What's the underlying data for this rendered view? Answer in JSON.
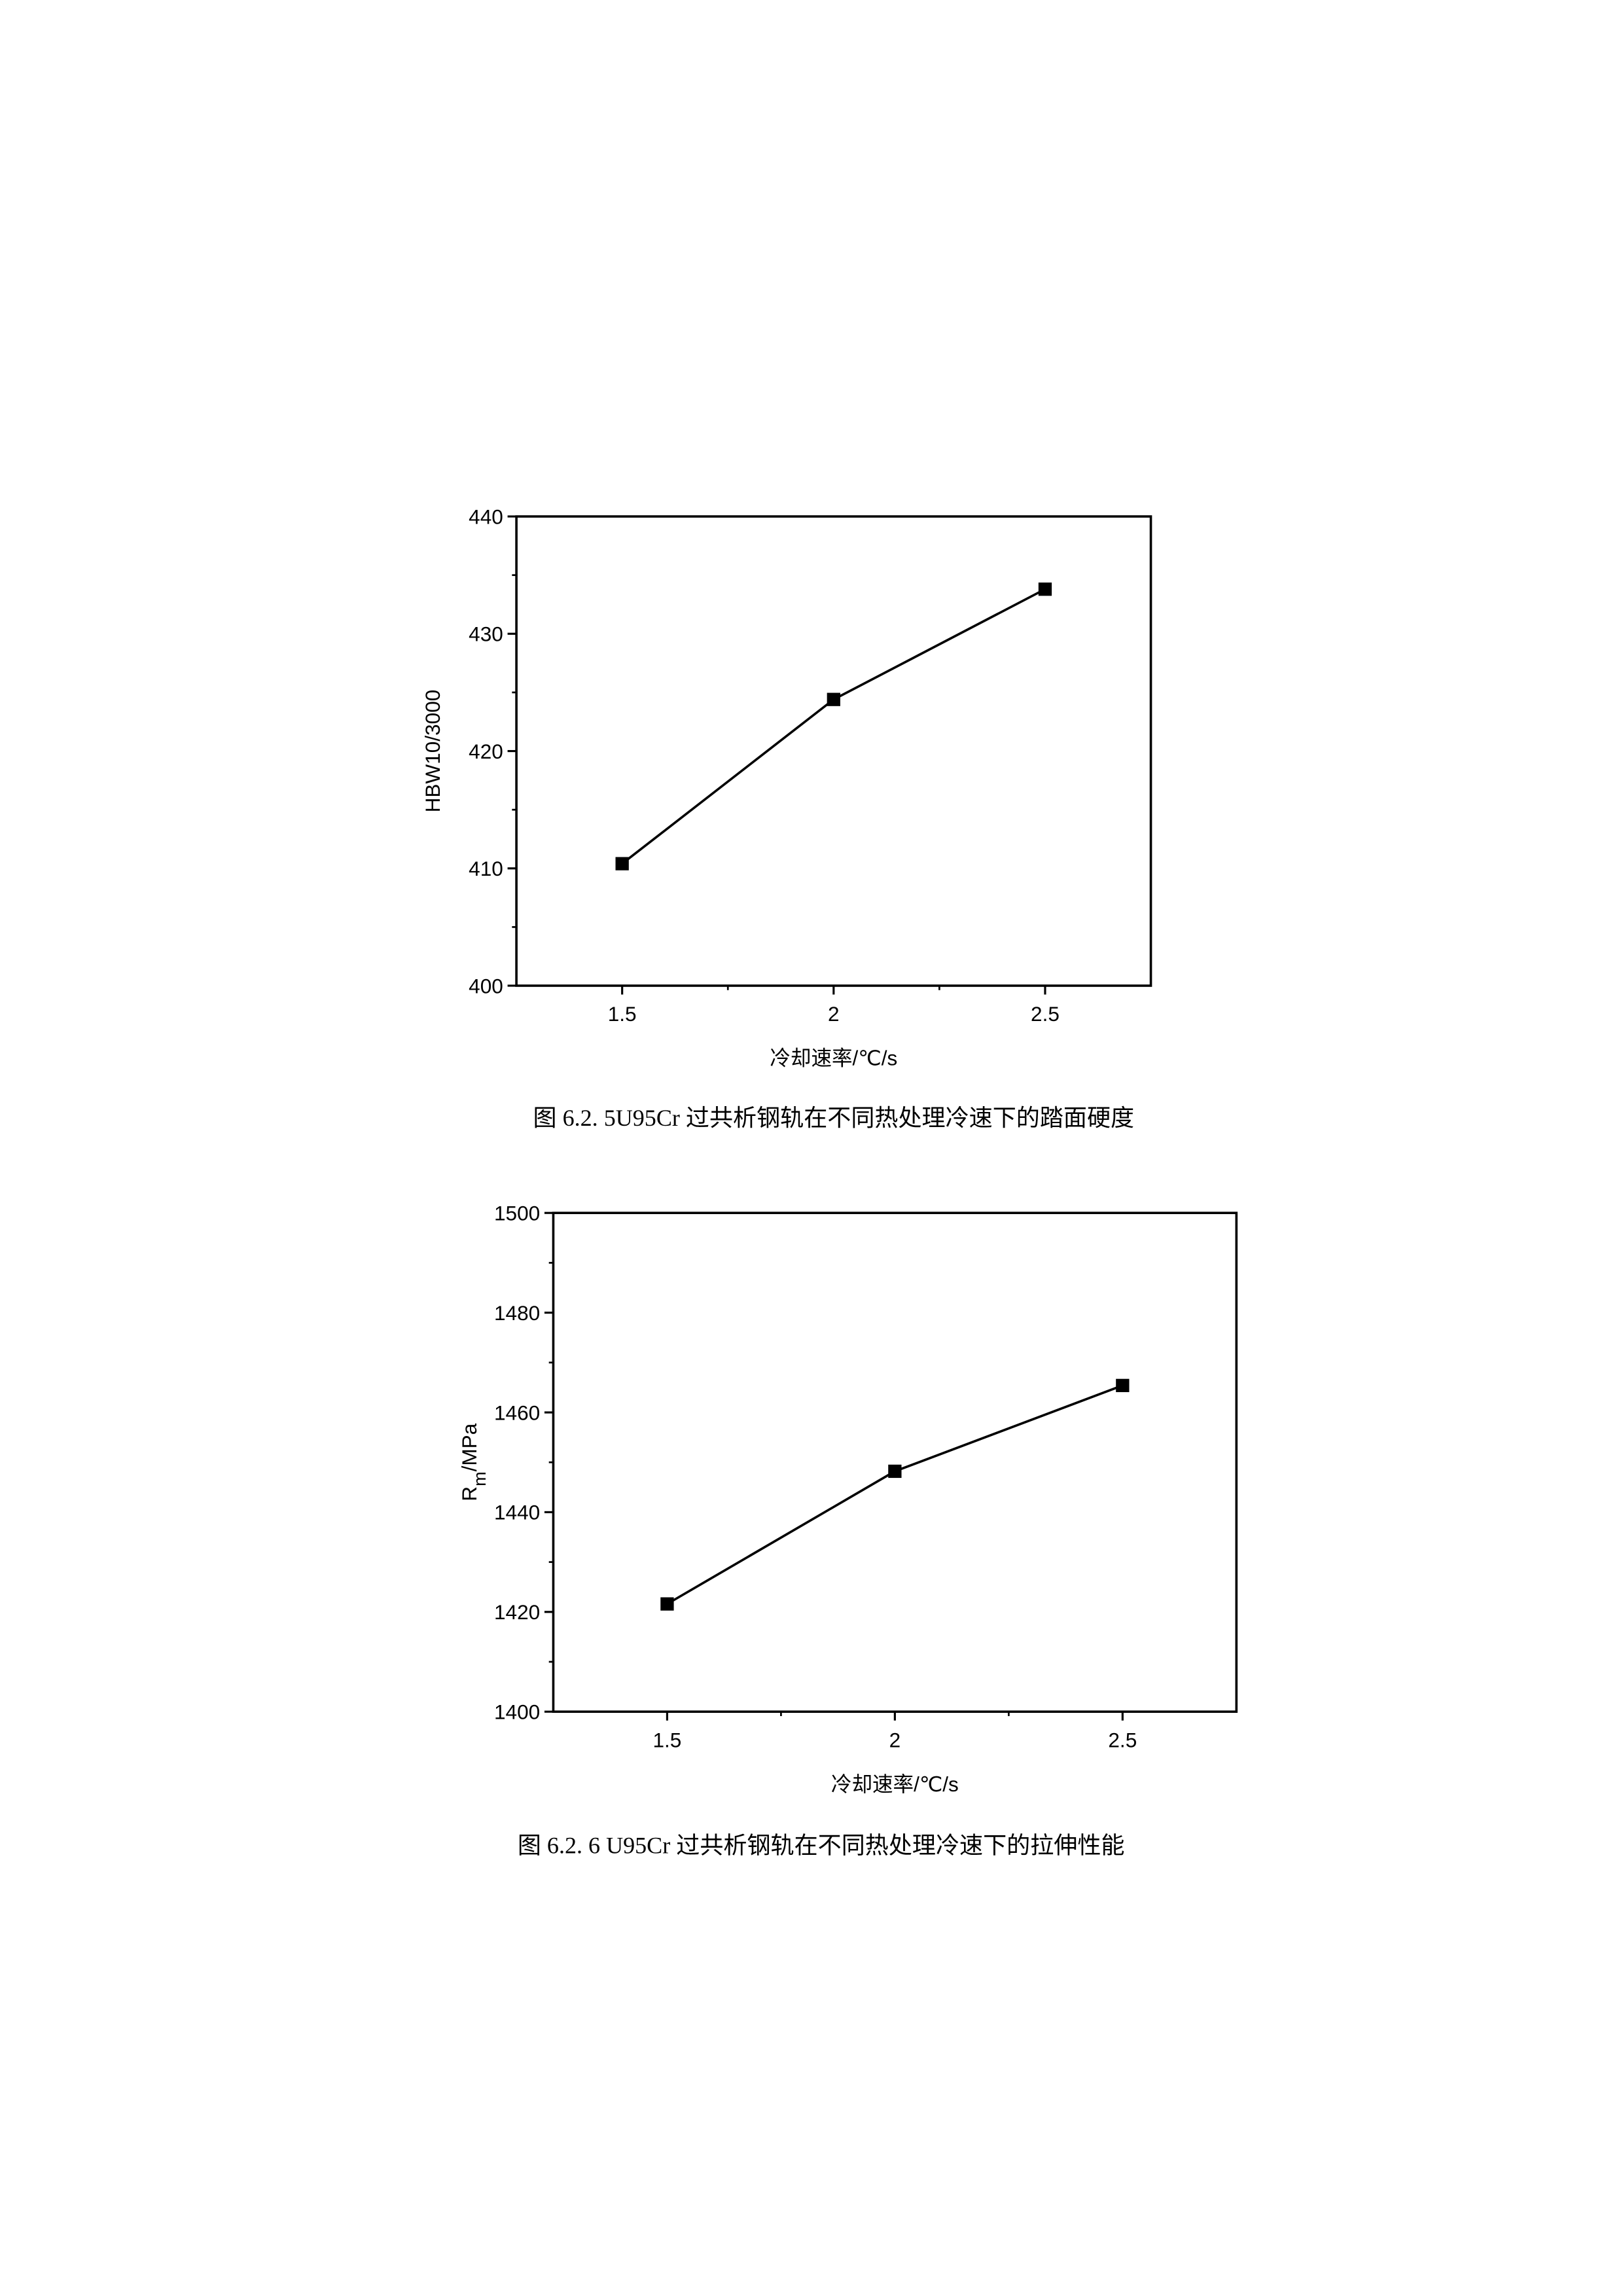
{
  "chart_data": [
    {
      "type": "line",
      "caption": "图 6.2. 5U95Cr 过共析钢轨在不同热处理冷速下的踏面硬度",
      "xlabel": "冷却速率/℃/s",
      "ylabel": [
        "HBW10/3000"
      ],
      "x": [
        1.5,
        2,
        2.5
      ],
      "series": [
        {
          "color": "#000000",
          "values": [
            410.4,
            424.4,
            433.8
          ]
        }
      ],
      "xlim": [
        1.25,
        2.75
      ],
      "xticks": [
        1.5,
        2,
        2.5
      ],
      "minor_xticks": [
        1.75,
        2.25
      ],
      "ylim": [
        400,
        440
      ],
      "yticks": [
        400,
        410,
        420,
        430,
        440
      ],
      "minor_yticks": [
        405,
        415,
        425,
        435
      ]
    },
    {
      "type": "line",
      "caption": "图 6.2. 6 U95Cr 过共析钢轨在不同热处理冷速下的拉伸性能",
      "xlabel": "冷却速率/℃/s",
      "ylabel": [
        "R",
        "m",
        "/MPa"
      ],
      "x": [
        1.5,
        2,
        2.5
      ],
      "series": [
        {
          "color": "#000000",
          "values": [
            1421.6,
            1448.2,
            1465.4
          ]
        }
      ],
      "xlim": [
        1.25,
        2.75
      ],
      "xticks": [
        1.5,
        2,
        2.5
      ],
      "minor_xticks": [
        1.75,
        2.25
      ],
      "ylim": [
        1400,
        1500
      ],
      "yticks": [
        1400,
        1420,
        1440,
        1460,
        1480,
        1500
      ],
      "minor_yticks": [
        1410,
        1430,
        1450,
        1470,
        1490
      ]
    }
  ]
}
